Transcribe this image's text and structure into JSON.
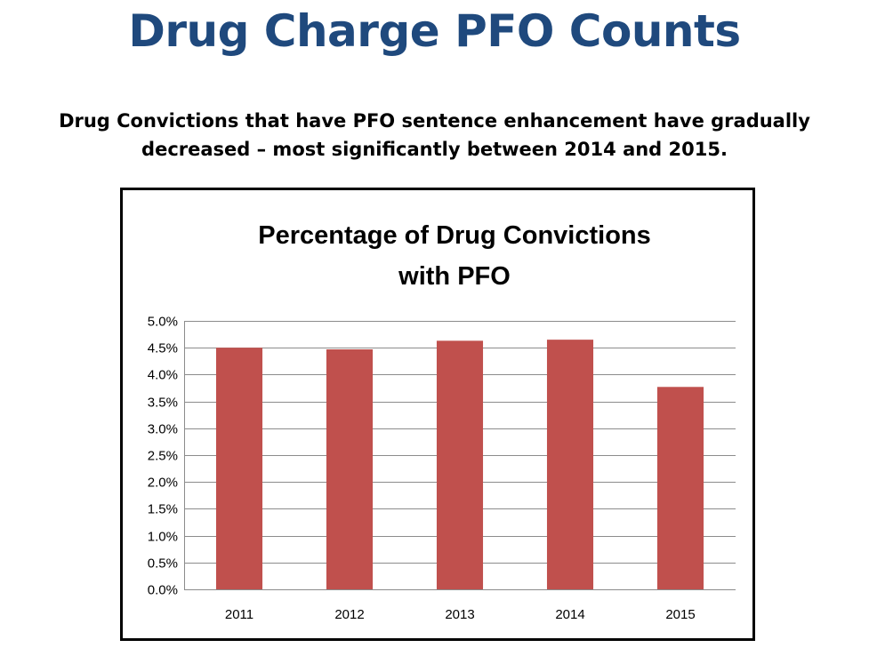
{
  "slide": {
    "title": "Drug Charge PFO Counts",
    "subtitle_line1": "Drug Convictions that have PFO sentence enhancement have gradually",
    "subtitle_line2": "decreased – most significantly between 2014 and 2015."
  },
  "chart_data": {
    "type": "bar",
    "title_lines": [
      "Percentage of Drug Convictions",
      "with PFO"
    ],
    "categories": [
      "2011",
      "2012",
      "2013",
      "2014",
      "2015"
    ],
    "values": [
      4.5,
      4.47,
      4.63,
      4.65,
      3.77
    ],
    "value_unit": "%",
    "ylim": [
      0,
      5.0
    ],
    "ytick_step": 0.5,
    "ytick_labels": [
      "0.0%",
      "0.5%",
      "1.0%",
      "1.5%",
      "2.0%",
      "2.5%",
      "3.0%",
      "3.5%",
      "4.0%",
      "4.5%",
      "5.0%"
    ],
    "xlabel": "",
    "ylabel": "",
    "grid": true,
    "legend": "none",
    "colors": {
      "bar": "#c0504d",
      "grid": "#8c8c8c",
      "title": "#1f497d"
    }
  }
}
